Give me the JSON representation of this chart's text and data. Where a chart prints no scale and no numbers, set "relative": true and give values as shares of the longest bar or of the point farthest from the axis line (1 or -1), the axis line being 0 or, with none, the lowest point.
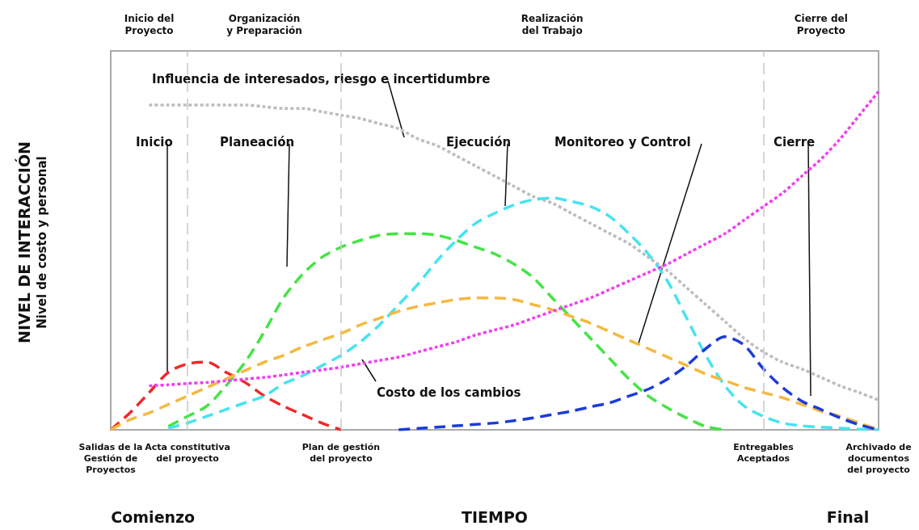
{
  "chart_data": {
    "type": "line",
    "relative": true,
    "xlabel": "TIEMPO",
    "ylabel": "NIVEL DE INTERACCIÓN\nNivel de costo y personal",
    "categories": [
      "Salidas de la\nGestión de\nProyectos",
      null,
      null,
      null,
      "Acta constitutiva\ndel proyecto",
      null,
      null,
      null,
      null,
      null,
      null,
      null,
      "Plan de gestión\ndel proyecto",
      null,
      null,
      null,
      null,
      null,
      null,
      null,
      null,
      null,
      null,
      null,
      null,
      null,
      null,
      null,
      null,
      null,
      null,
      null,
      null,
      null,
      "Entregables\nAceptados",
      null,
      null,
      null,
      null,
      null,
      "Archivado de\ndocumentos\ndel proyecto"
    ],
    "ref_lines": [
      {
        "axis": "x",
        "value": "Acta constitutiva\ndel proyecto",
        "color": "#c8c8c8",
        "line_style": "dashed"
      },
      {
        "axis": "x",
        "value": "Plan de gestión\ndel proyecto",
        "color": "#c8c8c8",
        "line_style": "dashed"
      },
      {
        "axis": "x",
        "value": "Entregables\nAceptados",
        "color": "#c8c8c8",
        "line_style": "dashed"
      }
    ],
    "annotations": [
      "Inicio del\nProyecto",
      "Organización\ny Preparación",
      "Realización\ndel Trabajo",
      "Cierre del\nProyecto",
      "Comienzo",
      "Final"
    ],
    "grid": false,
    "legend": false,
    "marker": "none",
    "series": [
      {
        "name": "Influencia de interesados, riesgo e incertidumbre",
        "color": "#bdbdbd",
        "line_style": "dotted",
        "values": [
          null,
          null,
          0.96,
          0.96,
          0.96,
          0.96,
          0.96,
          0.96,
          0.955,
          0.95,
          0.95,
          0.94,
          0.93,
          0.92,
          0.905,
          0.89,
          0.86,
          0.84,
          0.81,
          0.78,
          0.75,
          0.72,
          0.69,
          0.67,
          0.64,
          0.61,
          0.58,
          0.55,
          0.51,
          0.47,
          0.42,
          0.37,
          0.32,
          0.27,
          0.23,
          0.2,
          0.18,
          0.155,
          0.13,
          0.11,
          0.088
        ]
      },
      {
        "name": "Inicio",
        "color": "#f02828",
        "line_style": "dashed",
        "values": [
          0,
          0.05,
          0.11,
          0.17,
          0.195,
          0.2,
          0.17,
          0.14,
          0.1,
          0.07,
          0.045,
          0.02,
          0,
          null,
          null,
          null,
          null,
          null,
          null,
          null,
          null,
          null,
          null,
          null,
          null,
          null,
          null,
          null,
          null,
          null,
          null,
          null,
          null,
          null,
          null,
          null,
          null,
          null,
          null,
          null,
          null
        ]
      },
      {
        "name": "Planeación",
        "color": "#44e444",
        "line_style": "dashed",
        "values": [
          null,
          null,
          null,
          0.01,
          0.04,
          0.07,
          0.13,
          0.2,
          0.29,
          0.39,
          0.46,
          0.51,
          0.54,
          0.56,
          0.575,
          0.58,
          0.58,
          0.575,
          0.56,
          0.54,
          0.52,
          0.49,
          0.45,
          0.39,
          0.33,
          0.27,
          0.21,
          0.15,
          0.1,
          0.065,
          0.035,
          0.01,
          0,
          null,
          null,
          null,
          null,
          null,
          null,
          null,
          null
        ]
      },
      {
        "name": "Ejecución",
        "color": "#44e4f0",
        "line_style": "dashed",
        "values": [
          null,
          null,
          null,
          0.005,
          0.02,
          0.04,
          0.06,
          0.08,
          0.1,
          0.136,
          0.16,
          0.19,
          0.22,
          0.26,
          0.31,
          0.37,
          0.43,
          0.5,
          0.56,
          0.61,
          0.64,
          0.665,
          0.68,
          0.685,
          0.675,
          0.66,
          0.63,
          0.58,
          0.52,
          0.44,
          0.33,
          0.22,
          0.13,
          0.07,
          0.04,
          0.02,
          0.012,
          0.008,
          0.005,
          0.002,
          0
        ]
      },
      {
        "name": "Monitoreo y Control",
        "color": "#f5b840",
        "line_style": "dashed",
        "values": [
          0,
          0.03,
          0.05,
          0.075,
          0.1,
          0.125,
          0.15,
          0.175,
          0.2,
          0.22,
          0.245,
          0.265,
          0.285,
          0.31,
          0.33,
          0.35,
          0.365,
          0.375,
          0.385,
          0.39,
          0.39,
          0.385,
          0.37,
          0.355,
          0.335,
          0.315,
          0.29,
          0.265,
          0.24,
          0.215,
          0.19,
          0.165,
          0.145,
          0.125,
          0.11,
          0.095,
          0.075,
          0.055,
          0.04,
          0.02,
          0
        ]
      },
      {
        "name": "Cierre",
        "color": "#1c3cd8",
        "line_style": "dashed",
        "values": [
          null,
          null,
          null,
          null,
          null,
          null,
          null,
          null,
          null,
          null,
          null,
          null,
          null,
          null,
          null,
          0,
          0.004,
          0.008,
          0.012,
          0.016,
          0.02,
          0.027,
          0.035,
          0.045,
          0.055,
          0.068,
          0.08,
          0.1,
          0.12,
          0.15,
          0.19,
          0.24,
          0.275,
          0.25,
          0.18,
          0.125,
          0.085,
          0.06,
          0.035,
          0.015,
          0
        ]
      },
      {
        "name": "Costo de los cambios",
        "color": "#f040f0",
        "line_style": "dotted",
        "values": [
          null,
          null,
          0.13,
          0.133,
          0.137,
          0.14,
          0.145,
          0.15,
          0.155,
          0.162,
          0.17,
          0.177,
          0.185,
          0.195,
          0.205,
          0.215,
          0.23,
          0.245,
          0.26,
          0.28,
          0.295,
          0.31,
          0.33,
          0.35,
          0.37,
          0.39,
          0.415,
          0.44,
          0.465,
          0.49,
          0.52,
          0.55,
          0.58,
          0.62,
          0.66,
          0.7,
          0.75,
          0.8,
          0.86,
          0.93,
          1
        ]
      }
    ]
  }
}
